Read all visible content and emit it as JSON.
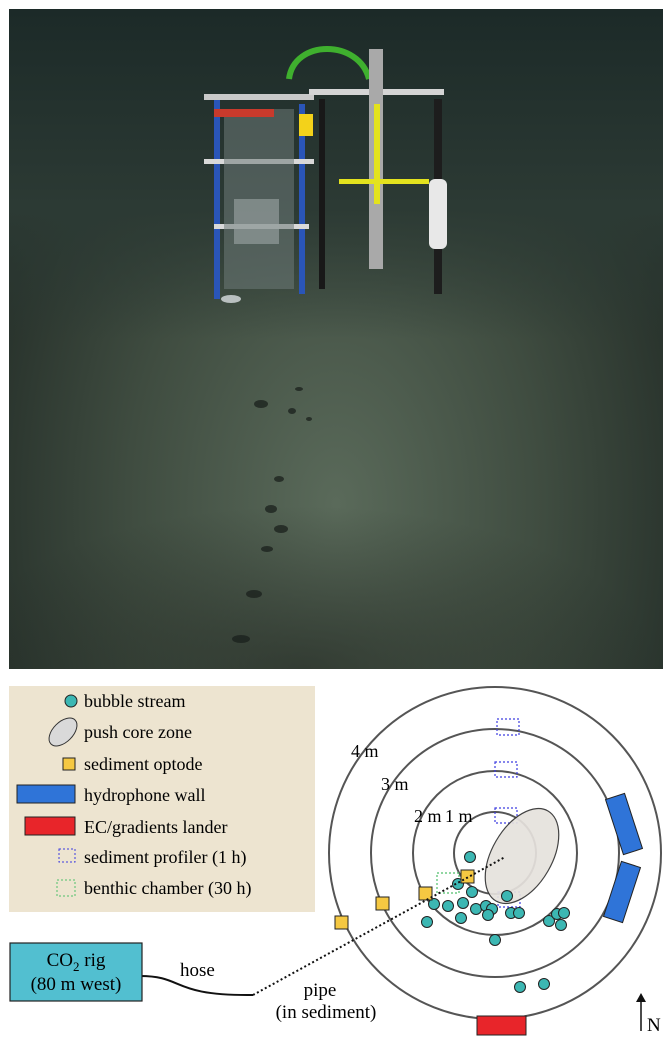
{
  "legend": {
    "items": [
      {
        "label": "bubble stream",
        "icon": "bubble-icon"
      },
      {
        "label": "push core zone",
        "icon": "ellipse-icon"
      },
      {
        "label": "sediment optode",
        "icon": "square-icon"
      },
      {
        "label": "hydrophone wall",
        "icon": "blue-bar-icon"
      },
      {
        "label": "EC/gradients lander",
        "icon": "red-bar-icon"
      },
      {
        "label": "sediment profiler (1 h)",
        "icon": "dotted-blue-square-icon"
      },
      {
        "label": "benthic chamber (30 h)",
        "icon": "dotted-green-square-icon"
      }
    ]
  },
  "rings": [
    {
      "label": "4 m"
    },
    {
      "label": "3 m"
    },
    {
      "label": "2 m"
    },
    {
      "label": "1 m"
    }
  ],
  "rig": {
    "line1": "CO",
    "sub": "2",
    "line1_suffix": " rig",
    "line2": "(80 m west)"
  },
  "labels": {
    "hose": "hose",
    "pipe_line1": "pipe",
    "pipe_line2": "(in sediment)",
    "north": "N"
  },
  "colors": {
    "bubble": "#3cb7b3",
    "optode": "#f5c842",
    "hydrophone": "#2f74d8",
    "lander": "#e8252a",
    "profiler": "#3d3de0",
    "chamber": "#4fbf6a",
    "legend_bg": "#ede4d0",
    "rig_box": "#52bfd0"
  }
}
